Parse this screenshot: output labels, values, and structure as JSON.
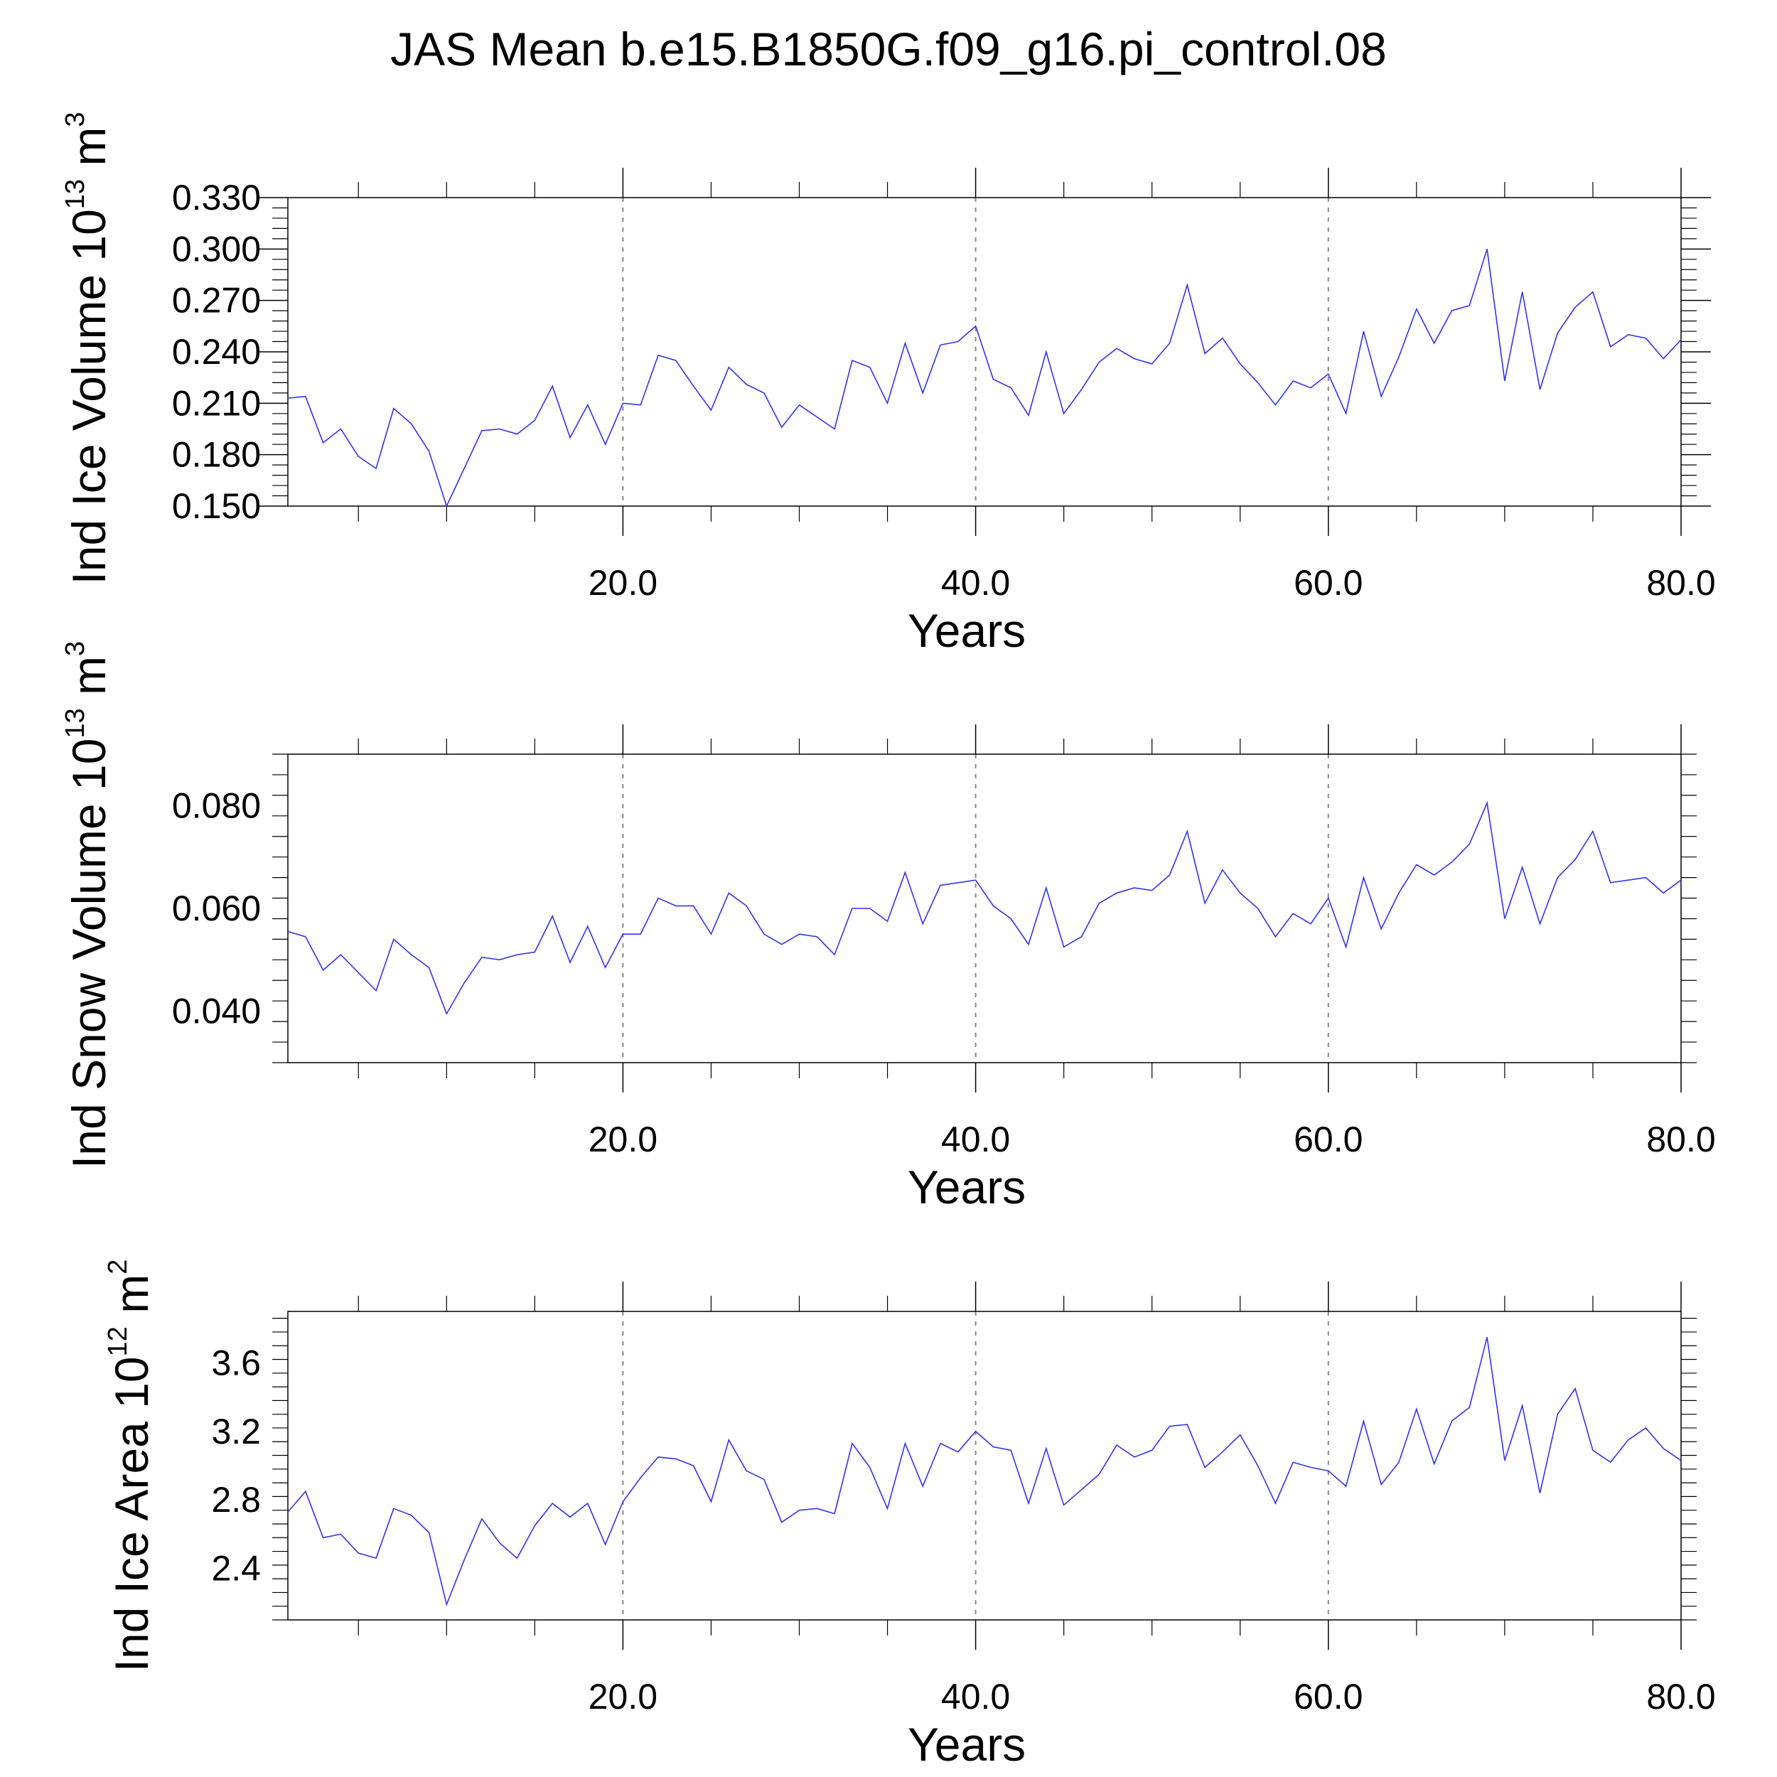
{
  "title": "JAS Mean b.e15.B1850G.f09_g16.pi_control.08",
  "colors": {
    "series": "#3333ee",
    "grid": "#888888",
    "axis": "#000000"
  },
  "chart_data": [
    {
      "type": "line",
      "ylabel": {
        "text": "Ind Ice Volume 10",
        "sup": "13",
        "unit": " m",
        "unit_sup": "3"
      },
      "xlabel": "Years",
      "xlim": [
        1,
        80
      ],
      "ylim": [
        0.15,
        0.33
      ],
      "yticks": [
        0.15,
        0.18,
        0.21,
        0.24,
        0.27,
        0.3,
        0.33
      ],
      "ytick_labels": [
        "0.150",
        "0.180",
        "0.210",
        "0.240",
        "0.270",
        "0.300",
        "0.330"
      ],
      "xticks": [
        20,
        40,
        60,
        80
      ],
      "xtick_labels": [
        "20.0",
        "40.0",
        "60.0",
        "80.0"
      ],
      "grid": "vertical dashed at major x ticks",
      "x_start": 1,
      "values": [
        0.213,
        0.214,
        0.187,
        0.195,
        0.179,
        0.172,
        0.207,
        0.198,
        0.182,
        0.15,
        0.172,
        0.194,
        0.195,
        0.192,
        0.2,
        0.22,
        0.19,
        0.209,
        0.186,
        0.21,
        0.209,
        0.238,
        0.235,
        0.22,
        0.206,
        0.231,
        0.221,
        0.216,
        0.196,
        0.209,
        0.202,
        0.195,
        0.235,
        0.231,
        0.21,
        0.245,
        0.216,
        0.244,
        0.246,
        0.255,
        0.224,
        0.219,
        0.203,
        0.24,
        0.204,
        0.218,
        0.234,
        0.242,
        0.236,
        0.233,
        0.245,
        0.279,
        0.239,
        0.248,
        0.233,
        0.222,
        0.209,
        0.223,
        0.219,
        0.227,
        0.204,
        0.252,
        0.214,
        0.237,
        0.265,
        0.245,
        0.264,
        0.267,
        0.3,
        0.223,
        0.275,
        0.218,
        0.251,
        0.266,
        0.275,
        0.243,
        0.25,
        0.248,
        0.236,
        0.247
      ]
    },
    {
      "type": "line",
      "ylabel": {
        "text": "Ind Snow Volume 10",
        "sup": "13",
        "unit": " m",
        "unit_sup": "3"
      },
      "xlabel": "Years",
      "xlim": [
        1,
        80
      ],
      "ylim": [
        0.03,
        0.09
      ],
      "yticks": [
        0.04,
        0.06,
        0.08
      ],
      "ytick_labels": [
        "0.040",
        "0.060",
        "0.080"
      ],
      "xticks": [
        20,
        40,
        60,
        80
      ],
      "xtick_labels": [
        "20.0",
        "40.0",
        "60.0",
        "80.0"
      ],
      "grid": "vertical dashed at major x ticks",
      "x_start": 1,
      "values": [
        0.0555,
        0.0545,
        0.048,
        0.051,
        0.0475,
        0.044,
        0.054,
        0.051,
        0.0485,
        0.0395,
        0.0455,
        0.0505,
        0.05,
        0.051,
        0.0515,
        0.0585,
        0.0495,
        0.0565,
        0.0485,
        0.055,
        0.055,
        0.062,
        0.0605,
        0.0605,
        0.055,
        0.063,
        0.0605,
        0.055,
        0.053,
        0.055,
        0.0545,
        0.051,
        0.06,
        0.06,
        0.0575,
        0.067,
        0.057,
        0.0645,
        0.065,
        0.0655,
        0.0605,
        0.058,
        0.053,
        0.064,
        0.0525,
        0.0545,
        0.061,
        0.063,
        0.064,
        0.0635,
        0.0665,
        0.075,
        0.061,
        0.0675,
        0.063,
        0.06,
        0.0545,
        0.059,
        0.057,
        0.062,
        0.0525,
        0.066,
        0.056,
        0.063,
        0.0685,
        0.0665,
        0.069,
        0.0725,
        0.0805,
        0.058,
        0.068,
        0.057,
        0.066,
        0.0695,
        0.075,
        0.065,
        0.0655,
        0.066,
        0.063,
        0.0655
      ]
    },
    {
      "type": "line",
      "ylabel": {
        "text": "Ind Ice Area 10",
        "sup": "12",
        "unit": " m",
        "unit_sup": "2"
      },
      "xlabel": "Years",
      "xlim": [
        1,
        80
      ],
      "ylim": [
        2.1,
        3.9
      ],
      "yticks": [
        2.4,
        2.8,
        3.2,
        3.6
      ],
      "ytick_labels": [
        "2.4",
        "2.8",
        "3.2",
        "3.6"
      ],
      "xticks": [
        20,
        40,
        60,
        80
      ],
      "xtick_labels": [
        "20.0",
        "40.0",
        "60.0",
        "80.0"
      ],
      "grid": "vertical dashed at major x ticks",
      "x_start": 1,
      "values": [
        2.73,
        2.85,
        2.58,
        2.6,
        2.49,
        2.46,
        2.75,
        2.71,
        2.61,
        2.19,
        2.45,
        2.69,
        2.55,
        2.46,
        2.65,
        2.78,
        2.7,
        2.78,
        2.54,
        2.79,
        2.93,
        3.05,
        3.04,
        3.0,
        2.79,
        3.15,
        2.97,
        2.92,
        2.67,
        2.74,
        2.75,
        2.72,
        3.13,
        2.99,
        2.75,
        3.13,
        2.88,
        3.13,
        3.08,
        3.2,
        3.11,
        3.09,
        2.78,
        3.1,
        2.77,
        2.86,
        2.95,
        3.12,
        3.05,
        3.09,
        3.23,
        3.24,
        2.99,
        3.08,
        3.18,
        3.0,
        2.78,
        3.02,
        2.99,
        2.97,
        2.88,
        3.26,
        2.89,
        3.02,
        3.33,
        3.01,
        3.26,
        3.34,
        3.75,
        3.03,
        3.35,
        2.84,
        3.3,
        3.45,
        3.09,
        3.02,
        3.15,
        3.22,
        3.1,
        3.03
      ]
    }
  ]
}
